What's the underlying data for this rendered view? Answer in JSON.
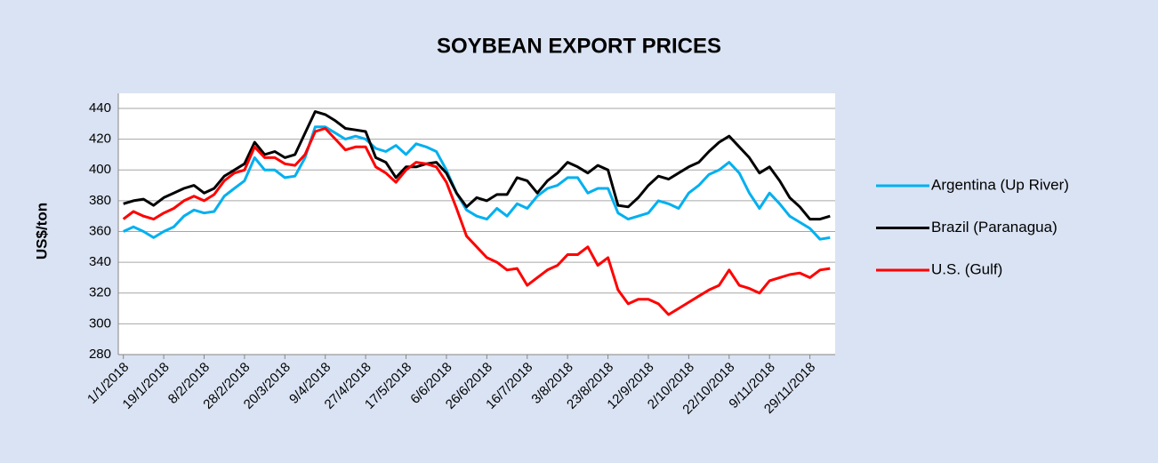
{
  "chart_data": {
    "type": "line",
    "title": "SOYBEAN EXPORT PRICES",
    "y_label": "US$/ton",
    "categories": [
      "1/1/2018",
      null,
      null,
      null,
      "19/1/2018",
      null,
      null,
      null,
      "8/2/2018",
      null,
      null,
      null,
      "28/2/2018",
      null,
      null,
      null,
      "20/3/2018",
      null,
      null,
      null,
      "9/4/2018",
      null,
      null,
      null,
      "27/4/2018",
      null,
      null,
      null,
      "17/5/2018",
      null,
      null,
      null,
      "6/6/2018",
      null,
      null,
      null,
      "26/6/2018",
      null,
      null,
      null,
      "16/7/2018",
      null,
      null,
      null,
      "3/8/2018",
      null,
      null,
      null,
      "23/8/2018",
      null,
      null,
      null,
      "12/9/2018",
      null,
      null,
      null,
      "2/10/2018",
      null,
      null,
      null,
      "22/10/2018",
      null,
      null,
      null,
      "9/11/2018",
      null,
      null,
      null,
      "29/11/2018",
      null,
      null
    ],
    "series": [
      {
        "name": "Argentina (Up River)",
        "color": "#00b0f0",
        "values": [
          360,
          363,
          360,
          356,
          360,
          363,
          370,
          374,
          372,
          373,
          383,
          388,
          393,
          408,
          400,
          400,
          395,
          396,
          408,
          428,
          428,
          424,
          420,
          422,
          420,
          414,
          412,
          416,
          410,
          417,
          415,
          412,
          400,
          385,
          374,
          370,
          368,
          375,
          370,
          378,
          375,
          383,
          388,
          390,
          395,
          395,
          385,
          388,
          388,
          372,
          368,
          370,
          372,
          380,
          378,
          375,
          385,
          390,
          397,
          400,
          405,
          398,
          385,
          375,
          385,
          378,
          370,
          366,
          362,
          355,
          356
        ]
      },
      {
        "name": "Brazil (Paranagua)",
        "color": "#000000",
        "values": [
          378,
          380,
          381,
          377,
          382,
          385,
          388,
          390,
          385,
          388,
          396,
          400,
          404,
          418,
          410,
          412,
          408,
          410,
          424,
          438,
          436,
          432,
          427,
          426,
          425,
          408,
          405,
          395,
          402,
          402,
          404,
          405,
          398,
          385,
          376,
          382,
          380,
          384,
          384,
          395,
          393,
          385,
          393,
          398,
          405,
          402,
          398,
          403,
          400,
          377,
          376,
          382,
          390,
          396,
          394,
          398,
          402,
          405,
          412,
          418,
          422,
          415,
          408,
          398,
          402,
          393,
          382,
          376,
          368,
          368,
          370
        ]
      },
      {
        "name": "U.S. (Gulf)",
        "color": "#ff0000",
        "values": [
          368,
          373,
          370,
          368,
          372,
          375,
          380,
          383,
          380,
          384,
          393,
          398,
          400,
          415,
          408,
          408,
          404,
          403,
          410,
          425,
          427,
          420,
          413,
          415,
          415,
          402,
          398,
          392,
          400,
          405,
          404,
          402,
          392,
          375,
          357,
          350,
          343,
          340,
          335,
          336,
          325,
          330,
          335,
          338,
          345,
          345,
          350,
          338,
          343,
          322,
          313,
          316,
          316,
          313,
          306,
          310,
          314,
          318,
          322,
          325,
          335,
          325,
          323,
          320,
          328,
          330,
          332,
          333,
          330,
          335,
          336
        ]
      }
    ],
    "ylim": [
      280,
      440
    ],
    "yticks": [
      280,
      300,
      320,
      340,
      360,
      380,
      400,
      420,
      440
    ],
    "grid": true,
    "legend": "right"
  }
}
